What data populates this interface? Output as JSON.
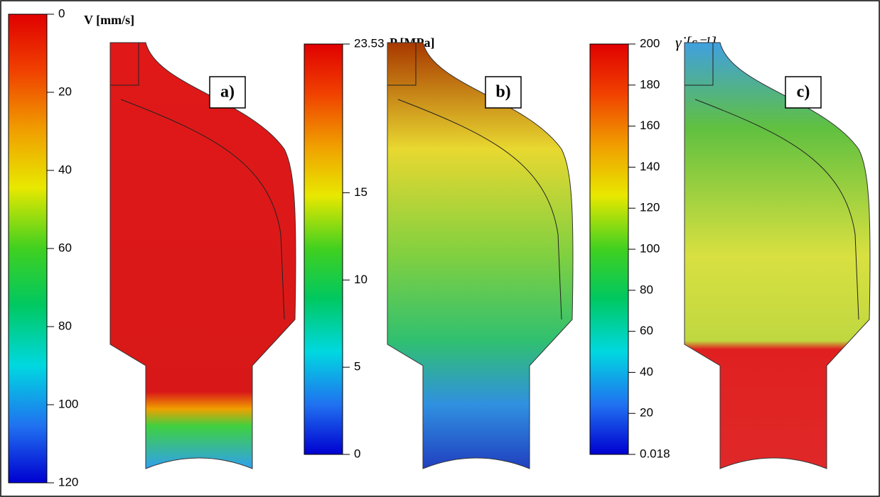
{
  "panels": [
    {
      "label": "a)",
      "title": "V [mm/s]",
      "ticks": [
        0,
        20,
        40,
        60,
        80,
        100,
        120
      ]
    },
    {
      "label": "b)",
      "title": "P [MPa]",
      "ticks": [
        23.53,
        15,
        10,
        5,
        0
      ]
    },
    {
      "label": "c)",
      "title": "γ̇ [s⁻¹]",
      "ticks": [
        200,
        180,
        160,
        140,
        120,
        100,
        80,
        60,
        40,
        20,
        0.018
      ]
    }
  ]
}
